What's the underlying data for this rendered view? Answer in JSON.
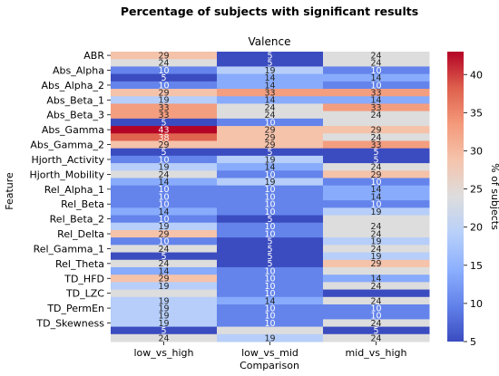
{
  "chart_data": {
    "type": "heatmap",
    "title": "Percentage of subjects with significant results",
    "subtitle": "Valence",
    "xlabel": "Comparison",
    "ylabel": "Feature",
    "colorbar_label": "% of subjects",
    "colorbar_ticks": [
      5,
      10,
      15,
      20,
      25,
      30,
      35,
      40
    ],
    "colorbar_range": [
      5,
      43
    ],
    "colormap": "coolwarm",
    "x_categories": [
      "low_vs_high",
      "low_vs_mid",
      "mid_vs_high"
    ],
    "y_tick_labels": [
      "ABR",
      "Abs_Alpha",
      "Abs_Alpha_2",
      "Abs_Beta_1",
      "Abs_Beta_3",
      "Abs_Gamma",
      "Abs_Gamma_2",
      "Hjorth_Activity",
      "Hjorth_Mobility",
      "Rel_Alpha_1",
      "Rel_Beta",
      "Rel_Beta_2",
      "Rel_Delta",
      "Rel_Gamma_1",
      "Rel_Theta",
      "TD_HFD",
      "TD_LZC",
      "TD_PermEn",
      "TD_Skewness"
    ],
    "rows": [
      {
        "values": [
          29,
          5,
          24
        ],
        "labels": [
          "29",
          "5",
          "24"
        ]
      },
      {
        "values": [
          24,
          5,
          24
        ],
        "labels": [
          "24",
          "5",
          "24"
        ]
      },
      {
        "values": [
          10,
          19,
          10
        ],
        "labels": [
          "10",
          "19",
          "10"
        ]
      },
      {
        "values": [
          5,
          14,
          14
        ],
        "labels": [
          "5",
          "14",
          "14"
        ]
      },
      {
        "values": [
          10,
          14,
          10
        ],
        "labels": [
          "10",
          "14",
          "10"
        ]
      },
      {
        "values": [
          29,
          33,
          33
        ],
        "labels": [
          "29",
          "33",
          "33"
        ]
      },
      {
        "values": [
          19,
          14,
          14
        ],
        "labels": [
          "19",
          "14",
          "14"
        ]
      },
      {
        "values": [
          33,
          24,
          33
        ],
        "labels": [
          "33",
          "24",
          "33"
        ]
      },
      {
        "values": [
          33,
          24,
          24
        ],
        "labels": [
          "33",
          "24",
          "24"
        ]
      },
      {
        "values": [
          5,
          10,
          24
        ],
        "labels": [
          "5",
          "10",
          ""
        ]
      },
      {
        "values": [
          43,
          29,
          29
        ],
        "labels": [
          "43",
          "29",
          "29"
        ]
      },
      {
        "values": [
          38,
          29,
          24
        ],
        "labels": [
          "38",
          "29",
          "24"
        ]
      },
      {
        "values": [
          29,
          29,
          33
        ],
        "labels": [
          "29",
          "29",
          "33"
        ]
      },
      {
        "values": [
          5,
          5,
          5
        ],
        "labels": [
          "5",
          "5",
          "5"
        ]
      },
      {
        "values": [
          10,
          19,
          5
        ],
        "labels": [
          "10",
          "19",
          "5"
        ]
      },
      {
        "values": [
          19,
          14,
          24
        ],
        "labels": [
          "19",
          "14",
          "24"
        ]
      },
      {
        "values": [
          24,
          10,
          29
        ],
        "labels": [
          "24",
          "10",
          "29"
        ]
      },
      {
        "values": [
          14,
          19,
          10
        ],
        "labels": [
          "14",
          "19",
          "10"
        ]
      },
      {
        "values": [
          10,
          10,
          14
        ],
        "labels": [
          "10",
          "10",
          "14"
        ]
      },
      {
        "values": [
          10,
          10,
          14
        ],
        "labels": [
          "10",
          "10",
          "14"
        ]
      },
      {
        "values": [
          10,
          10,
          10
        ],
        "labels": [
          "10",
          "10",
          "10"
        ]
      },
      {
        "values": [
          14,
          10,
          19
        ],
        "labels": [
          "14",
          "10",
          "19"
        ]
      },
      {
        "values": [
          10,
          5,
          24
        ],
        "labels": [
          "10",
          "5",
          ""
        ]
      },
      {
        "values": [
          19,
          10,
          24
        ],
        "labels": [
          "19",
          "10",
          "24"
        ]
      },
      {
        "values": [
          29,
          10,
          24
        ],
        "labels": [
          "29",
          "10",
          "24"
        ]
      },
      {
        "values": [
          10,
          5,
          19
        ],
        "labels": [
          "10",
          "5",
          "19"
        ]
      },
      {
        "values": [
          24,
          5,
          24
        ],
        "labels": [
          "24",
          "5",
          "24"
        ]
      },
      {
        "values": [
          5,
          5,
          19
        ],
        "labels": [
          "5",
          "5",
          "19"
        ]
      },
      {
        "values": [
          24,
          5,
          29
        ],
        "labels": [
          "24",
          "5",
          "29"
        ]
      },
      {
        "values": [
          14,
          10,
          24
        ],
        "labels": [
          "14",
          "10",
          ""
        ]
      },
      {
        "values": [
          29,
          10,
          14
        ],
        "labels": [
          "29",
          "10",
          "14"
        ]
      },
      {
        "values": [
          19,
          10,
          24
        ],
        "labels": [
          "19",
          "10",
          "24"
        ]
      },
      {
        "values": [
          24,
          10,
          5
        ],
        "labels": [
          "",
          "10",
          ""
        ]
      },
      {
        "values": [
          19,
          14,
          24
        ],
        "labels": [
          "19",
          "14",
          "24"
        ]
      },
      {
        "values": [
          19,
          10,
          10
        ],
        "labels": [
          "19",
          "10",
          "10"
        ]
      },
      {
        "values": [
          19,
          10,
          10
        ],
        "labels": [
          "19",
          "10",
          "10"
        ]
      },
      {
        "values": [
          19,
          10,
          24
        ],
        "labels": [
          "19",
          "10",
          "24"
        ]
      },
      {
        "values": [
          5,
          24,
          5
        ],
        "labels": [
          "5",
          "",
          "5"
        ]
      },
      {
        "values": [
          24,
          19,
          24
        ],
        "labels": [
          "24",
          "19",
          "24"
        ]
      }
    ]
  }
}
